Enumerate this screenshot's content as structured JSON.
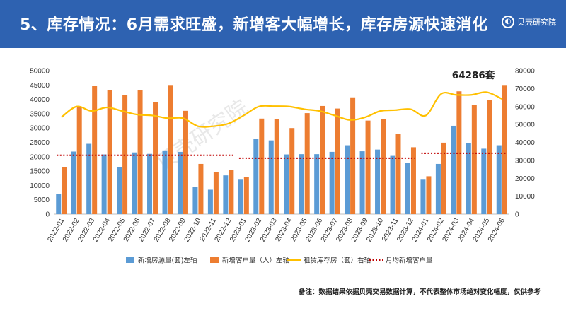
{
  "header": {
    "title": "5、库存情况：6月需求旺盛，新增客大幅增长，库存房源快速消化",
    "brand": "贝壳研究院"
  },
  "note": "备注：数据结果依据贝壳交易数据计算，不代表整体市场绝对变化幅度，仅供参考",
  "colors": {
    "header_bg": "#2e62b1",
    "listings_bar": "#5b9bd5",
    "customers_bar": "#ed7d31",
    "inventory_line": "#ffc000",
    "avg_line": "#c00000"
  },
  "chart_data": {
    "type": "bar",
    "categories": [
      "2022-01",
      "2022-02",
      "2022-03",
      "2022-04",
      "2022-05",
      "2022-06",
      "2022-07",
      "2022-08",
      "2022-09",
      "2022-10",
      "2022-11",
      "2022-12",
      "2023-01",
      "2023-02",
      "2023-03",
      "2023-04",
      "2023-05",
      "2023-06",
      "2023-07",
      "2023-08",
      "2023-09",
      "2023-10",
      "2023-11",
      "2023-12",
      "2024-01",
      "2024-02",
      "2024-03",
      "2024-04",
      "2024-05",
      "2024-06"
    ],
    "left_axis": {
      "min": 0,
      "max": 50000,
      "step": 5000,
      "ticks": [
        "0",
        "5000",
        "10000",
        "15000",
        "20000",
        "25000",
        "30000",
        "35000",
        "40000",
        "45000",
        "50000"
      ]
    },
    "right_axis": {
      "min": 0,
      "max": 80000,
      "step": 10000,
      "ticks": [
        "0",
        "10000",
        "20000",
        "30000",
        "40000",
        "50000",
        "60000",
        "70000",
        "80000"
      ]
    },
    "series": [
      {
        "name": "新增房源量(套)左轴",
        "type": "bar",
        "axis": "left",
        "values": [
          7000,
          21800,
          24500,
          20800,
          16500,
          21500,
          21000,
          22200,
          21700,
          9500,
          8500,
          13500,
          12000,
          26300,
          25700,
          20800,
          20900,
          20900,
          21700,
          24000,
          21900,
          22500,
          20300,
          17800,
          12000,
          17500,
          30800,
          24800,
          22800,
          24000
        ]
      },
      {
        "name": "新增客户量（人）左轴",
        "type": "bar",
        "axis": "left",
        "values": [
          16500,
          37200,
          44800,
          43200,
          41500,
          43100,
          39000,
          45000,
          36000,
          17500,
          14600,
          15400,
          13000,
          33300,
          33200,
          30000,
          35200,
          37700,
          36800,
          40700,
          32600,
          33100,
          27900,
          23300,
          13200,
          24900,
          42800,
          38100,
          39900,
          45000
        ]
      },
      {
        "name": "租赁库存房（套）右轴",
        "type": "line",
        "axis": "right",
        "values": [
          54000,
          60000,
          57500,
          59500,
          57500,
          55500,
          55000,
          53500,
          53500,
          49000,
          49000,
          50500,
          55000,
          60000,
          60200,
          60000,
          58500,
          57500,
          55000,
          52500,
          54000,
          57500,
          58000,
          58500,
          55000,
          67000,
          66500,
          66500,
          68000,
          64286
        ]
      },
      {
        "name": "月均新增客户量",
        "type": "dotted",
        "axis": "left",
        "segments": [
          {
            "from": "2022-01",
            "to": "2022-12",
            "value": 20500
          },
          {
            "from": "2023-01",
            "to": "2023-12",
            "value": 19500
          },
          {
            "from": "2024-01",
            "to": "2024-06",
            "value": 21200
          }
        ]
      }
    ],
    "annotation": {
      "text": "64286套",
      "category": "2024-06"
    },
    "watermark": "贝壳研究院",
    "legend_position": "bottom",
    "grid": false
  }
}
